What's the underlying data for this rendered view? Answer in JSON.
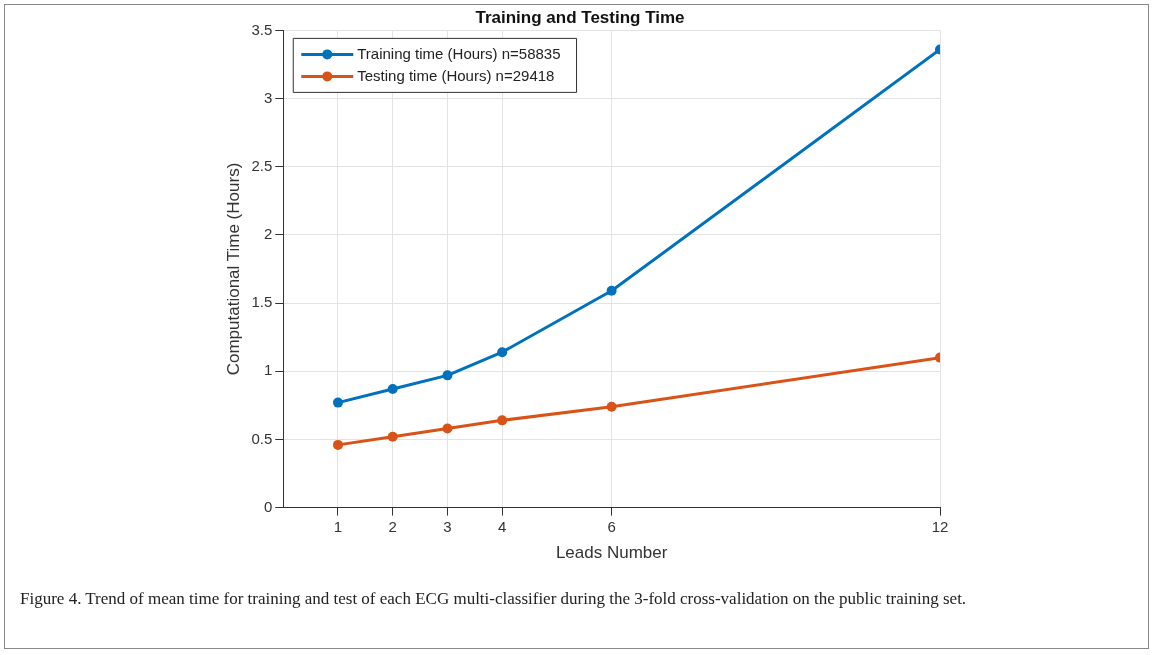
{
  "chart_data": {
    "type": "line",
    "title": "Training and Testing Time",
    "xlabel": "Leads Number",
    "ylabel": "Computational Time (Hours)",
    "x": [
      1,
      2,
      3,
      4,
      6,
      12
    ],
    "series": [
      {
        "name": "Training time (Hours) n=58835",
        "color": "#0072bd",
        "values": [
          0.77,
          0.87,
          0.97,
          1.14,
          1.59,
          3.36
        ]
      },
      {
        "name": "Testing time (Hours) n=29418",
        "color": "#d95319",
        "values": [
          0.46,
          0.52,
          0.58,
          0.64,
          0.74,
          1.1
        ]
      }
    ],
    "xlim": [
      0,
      12
    ],
    "xticks": [
      1,
      2,
      3,
      4,
      6,
      12
    ],
    "ylim": [
      0,
      3.5
    ],
    "yticks": [
      0,
      0.5,
      1,
      1.5,
      2,
      2.5,
      3,
      3.5
    ],
    "grid": true,
    "legend": "top left",
    "marker": "circle",
    "line_style": "solid",
    "annotations": [
      "Figure 4. Trend of mean time for training and test of each ECG multi-classifier during the 3-fold cross-validation on the public training set."
    ]
  }
}
